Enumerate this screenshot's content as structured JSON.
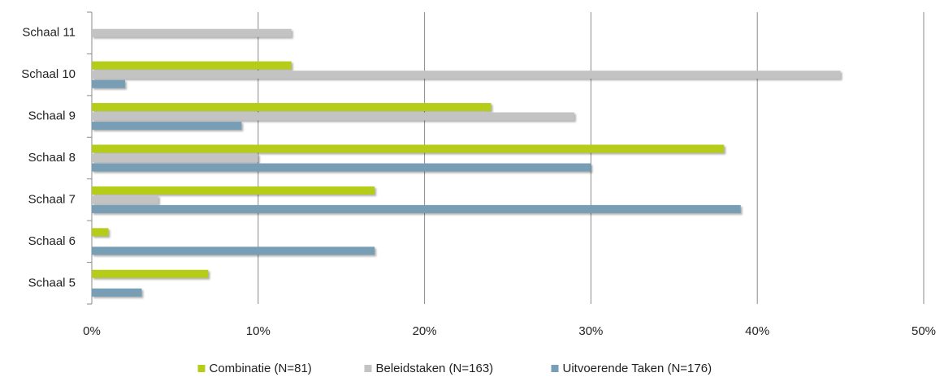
{
  "chart_data": {
    "type": "barh",
    "categories": [
      "Schaal 5",
      "Schaal 6",
      "Schaal 7",
      "Schaal 8",
      "Schaal 9",
      "Schaal 10",
      "Schaal 11"
    ],
    "series": [
      {
        "name": "Combinatie (N=81)",
        "color": "#b5cc18",
        "values": [
          7,
          1,
          17,
          38,
          24,
          12,
          0
        ]
      },
      {
        "name": "Beleidstaken (N=163)",
        "color": "#c3c3c3",
        "values": [
          0,
          0,
          4,
          10,
          29,
          45,
          12
        ]
      },
      {
        "name": "Uitvoerende Taken (N=176)",
        "color": "#779eb5",
        "values": [
          3,
          17,
          39,
          30,
          9,
          2,
          0
        ]
      }
    ],
    "xlim": [
      0,
      50
    ],
    "xticks": [
      {
        "value": 0,
        "label": "0%"
      },
      {
        "value": 10,
        "label": "10%"
      },
      {
        "value": 20,
        "label": "20%"
      },
      {
        "value": 30,
        "label": "30%"
      },
      {
        "value": 40,
        "label": "40%"
      },
      {
        "value": 50,
        "label": "50%"
      }
    ],
    "grid": true,
    "legend": "bottom"
  }
}
